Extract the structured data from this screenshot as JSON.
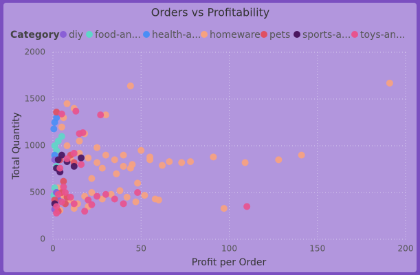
{
  "chart_data": {
    "type": "scatter",
    "title": "Orders vs Profitability",
    "x_label": "Profit per Order",
    "y_label": "Total Quantity",
    "legend_title": "Category",
    "legend_position": "top-left",
    "xlim": [
      0,
      200
    ],
    "xticks": [
      0,
      50,
      100,
      150,
      200
    ],
    "ylim": [
      0,
      2000
    ],
    "yticks": [
      0,
      500,
      1000,
      1500,
      2000
    ],
    "grid": true,
    "series": [
      {
        "name": "homeware",
        "color": "#f7a27f",
        "x": [
          44,
          191,
          141,
          128,
          109,
          91,
          73,
          78,
          97,
          62,
          55,
          50,
          45,
          40,
          35,
          30,
          25,
          20,
          15,
          10,
          8,
          12,
          6,
          30,
          5,
          58,
          52,
          47,
          42,
          38,
          33,
          28,
          22,
          18,
          14,
          10,
          6,
          3,
          36,
          22,
          48,
          15,
          25,
          40,
          55,
          66,
          4,
          12,
          20,
          60,
          8,
          18,
          28,
          44
        ],
        "y": [
          1640,
          1670,
          900,
          850,
          820,
          880,
          820,
          830,
          330,
          790,
          850,
          950,
          800,
          780,
          850,
          900,
          820,
          870,
          920,
          860,
          1450,
          1400,
          1300,
          1330,
          1200,
          430,
          470,
          400,
          450,
          520,
          480,
          430,
          500,
          460,
          380,
          420,
          470,
          550,
          700,
          650,
          600,
          1050,
          980,
          900,
          880,
          830,
          310,
          330,
          350,
          420,
          1000,
          1130,
          760,
          760
        ]
      },
      {
        "name": "food-an...",
        "color": "#5fd6c8",
        "x": [
          1,
          2,
          3,
          5,
          1,
          2,
          0.5,
          1,
          3
        ],
        "y": [
          1000,
          950,
          1050,
          1100,
          880,
          780,
          470,
          550,
          420
        ]
      },
      {
        "name": "health-a...",
        "color": "#4b8ef5",
        "x": [
          1,
          2,
          0.5,
          1,
          2
        ],
        "y": [
          1250,
          1300,
          1180,
          900,
          500
        ]
      },
      {
        "name": "diy",
        "color": "#8a5fd6",
        "x": [
          1,
          2,
          3,
          4,
          1
        ],
        "y": [
          850,
          500,
          420,
          720,
          320
        ]
      },
      {
        "name": "pets",
        "color": "#e05062",
        "x": [
          2,
          3,
          5,
          8,
          4,
          10,
          6,
          1,
          7,
          12
        ],
        "y": [
          1360,
          300,
          500,
          450,
          850,
          900,
          620,
          420,
          380,
          820
        ]
      },
      {
        "name": "sports-a...",
        "color": "#4a1660",
        "x": [
          2,
          3,
          5,
          8,
          12,
          16,
          1,
          4
        ],
        "y": [
          760,
          850,
          900,
          830,
          780,
          870,
          380,
          720
        ]
      },
      {
        "name": "toys-an...",
        "color": "#e8538e",
        "x": [
          110,
          27,
          5,
          13,
          15,
          17,
          48,
          30,
          20,
          10,
          5,
          2,
          7,
          12,
          25,
          35,
          40,
          18,
          3,
          8,
          12,
          16,
          4,
          2,
          22,
          6
        ],
        "y": [
          350,
          1330,
          1340,
          1370,
          1130,
          1140,
          500,
          480,
          420,
          450,
          400,
          350,
          500,
          380,
          460,
          430,
          380,
          300,
          480,
          860,
          920,
          800,
          760,
          280,
          370,
          560
        ]
      }
    ],
    "legend_order": [
      3,
      1,
      2,
      0,
      4,
      5,
      6
    ]
  }
}
